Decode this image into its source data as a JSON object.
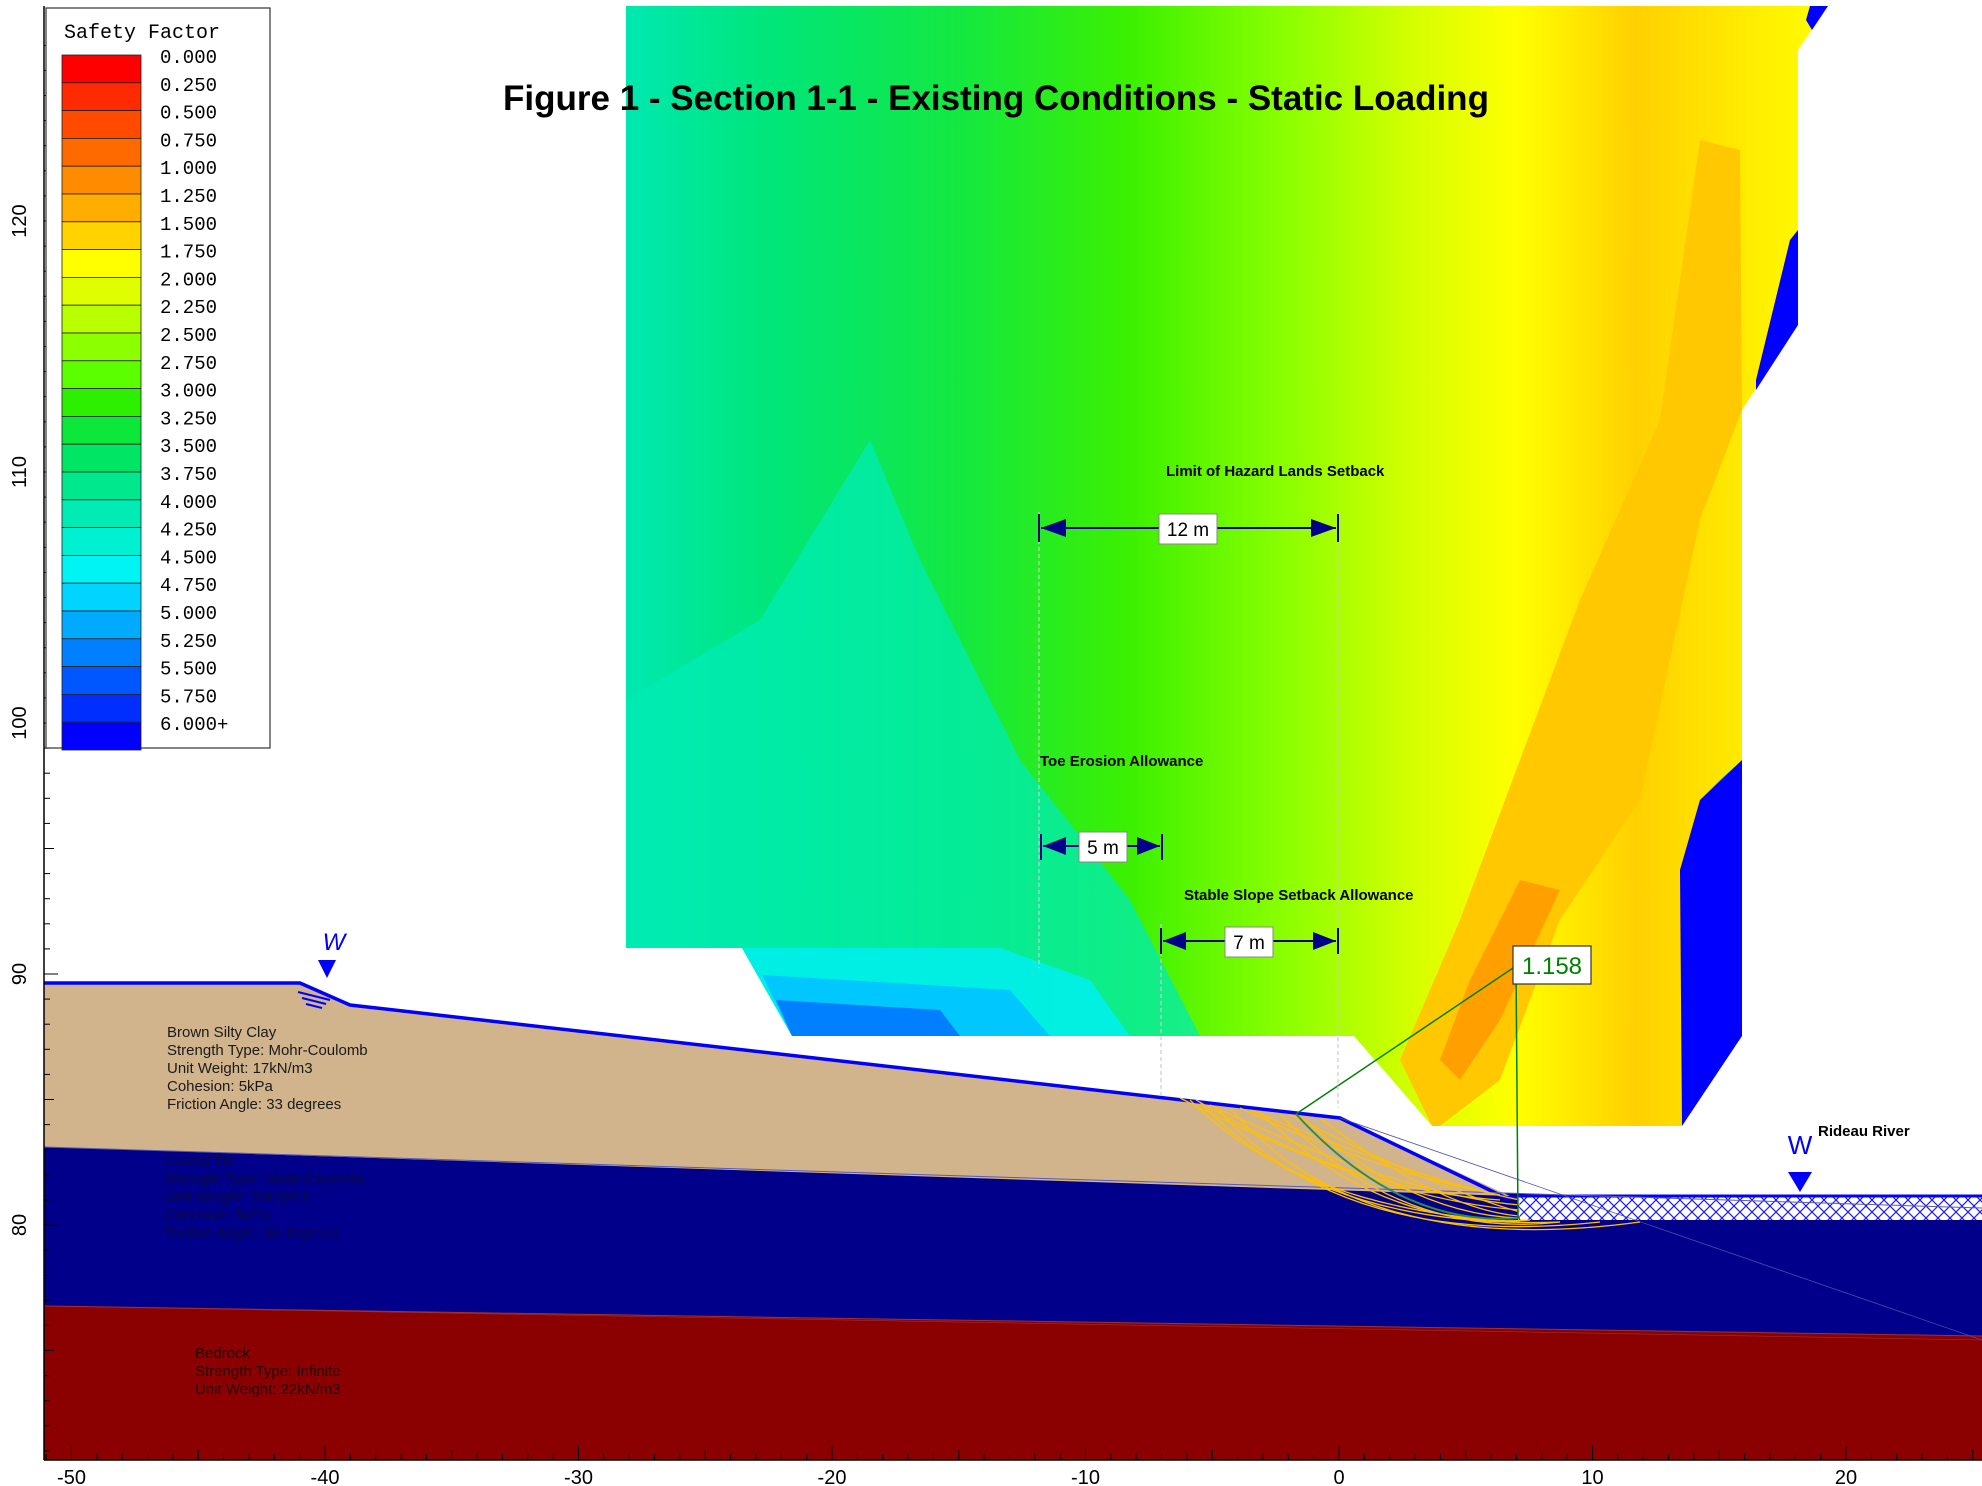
{
  "title": "Figure 1 - Section 1-1 - Existing Conditions - Static Loading",
  "legend": {
    "title": "Safety Factor",
    "entries": [
      {
        "label": "0.000",
        "color": "#ff0000"
      },
      {
        "label": "0.250",
        "color": "#ff2a00"
      },
      {
        "label": "0.500",
        "color": "#ff4a00"
      },
      {
        "label": "0.750",
        "color": "#ff6a00"
      },
      {
        "label": "1.000",
        "color": "#ff8c00"
      },
      {
        "label": "1.250",
        "color": "#ffae00"
      },
      {
        "label": "1.500",
        "color": "#ffd200"
      },
      {
        "label": "1.750",
        "color": "#ffff00"
      },
      {
        "label": "2.000",
        "color": "#dfff00"
      },
      {
        "label": "2.250",
        "color": "#b8ff00"
      },
      {
        "label": "2.500",
        "color": "#8cff00"
      },
      {
        "label": "2.750",
        "color": "#5cff00"
      },
      {
        "label": "3.000",
        "color": "#2cf000"
      },
      {
        "label": "3.250",
        "color": "#0ce83a"
      },
      {
        "label": "3.500",
        "color": "#00e664"
      },
      {
        "label": "3.750",
        "color": "#00e88e"
      },
      {
        "label": "4.000",
        "color": "#00ecb4"
      },
      {
        "label": "4.250",
        "color": "#00f0d2"
      },
      {
        "label": "4.500",
        "color": "#00f4f4"
      },
      {
        "label": "4.750",
        "color": "#00d4ff"
      },
      {
        "label": "5.000",
        "color": "#00aaff"
      },
      {
        "label": "5.250",
        "color": "#0080ff"
      },
      {
        "label": "5.500",
        "color": "#0056ff"
      },
      {
        "label": "5.750",
        "color": "#002eff"
      },
      {
        "label": "6.000+",
        "color": "#0000ff"
      }
    ]
  },
  "x_axis": {
    "ticks": [
      "-50",
      "-40",
      "-30",
      "-20",
      "-10",
      "0",
      "10",
      "20"
    ]
  },
  "y_axis": {
    "ticks": [
      "80",
      "90",
      "100",
      "110",
      "120"
    ]
  },
  "annotations": {
    "hazard_label": "Limit of Hazard Lands Setback",
    "hazard_dim": "12 m",
    "toe_label": "Toe Erosion Allowance",
    "toe_dim": "5 m",
    "stable_label": "Stable Slope Setback Allowance",
    "stable_dim": "7 m",
    "min_fs": "1.158",
    "river_label": "Rideau River",
    "water_symbol": "W"
  },
  "materials": [
    {
      "name": "Brown Silty Clay",
      "lines": [
        "Brown Silty Clay",
        "Strength Type: Mohr-Coulomb",
        "Unit Weight: 17kN/m3",
        "Cohesion: 5kPa",
        "Friction Angle: 33 degrees"
      ],
      "color": "#d2b48c"
    },
    {
      "name": "Glacial Till",
      "lines": [
        "Glacial Till",
        "Strength Type: Mohr-Coulomb",
        "Unit Weight: 20kN/m3",
        "Cohesion: 5kPa",
        "Friction Angle: 36 degrees"
      ],
      "color": "#00008b"
    },
    {
      "name": "Bedrock",
      "lines": [
        "Bedrock",
        "Strength Type: Infinite",
        "Unit Weight: 22kN/m3"
      ],
      "color": "#8b0000"
    }
  ]
}
